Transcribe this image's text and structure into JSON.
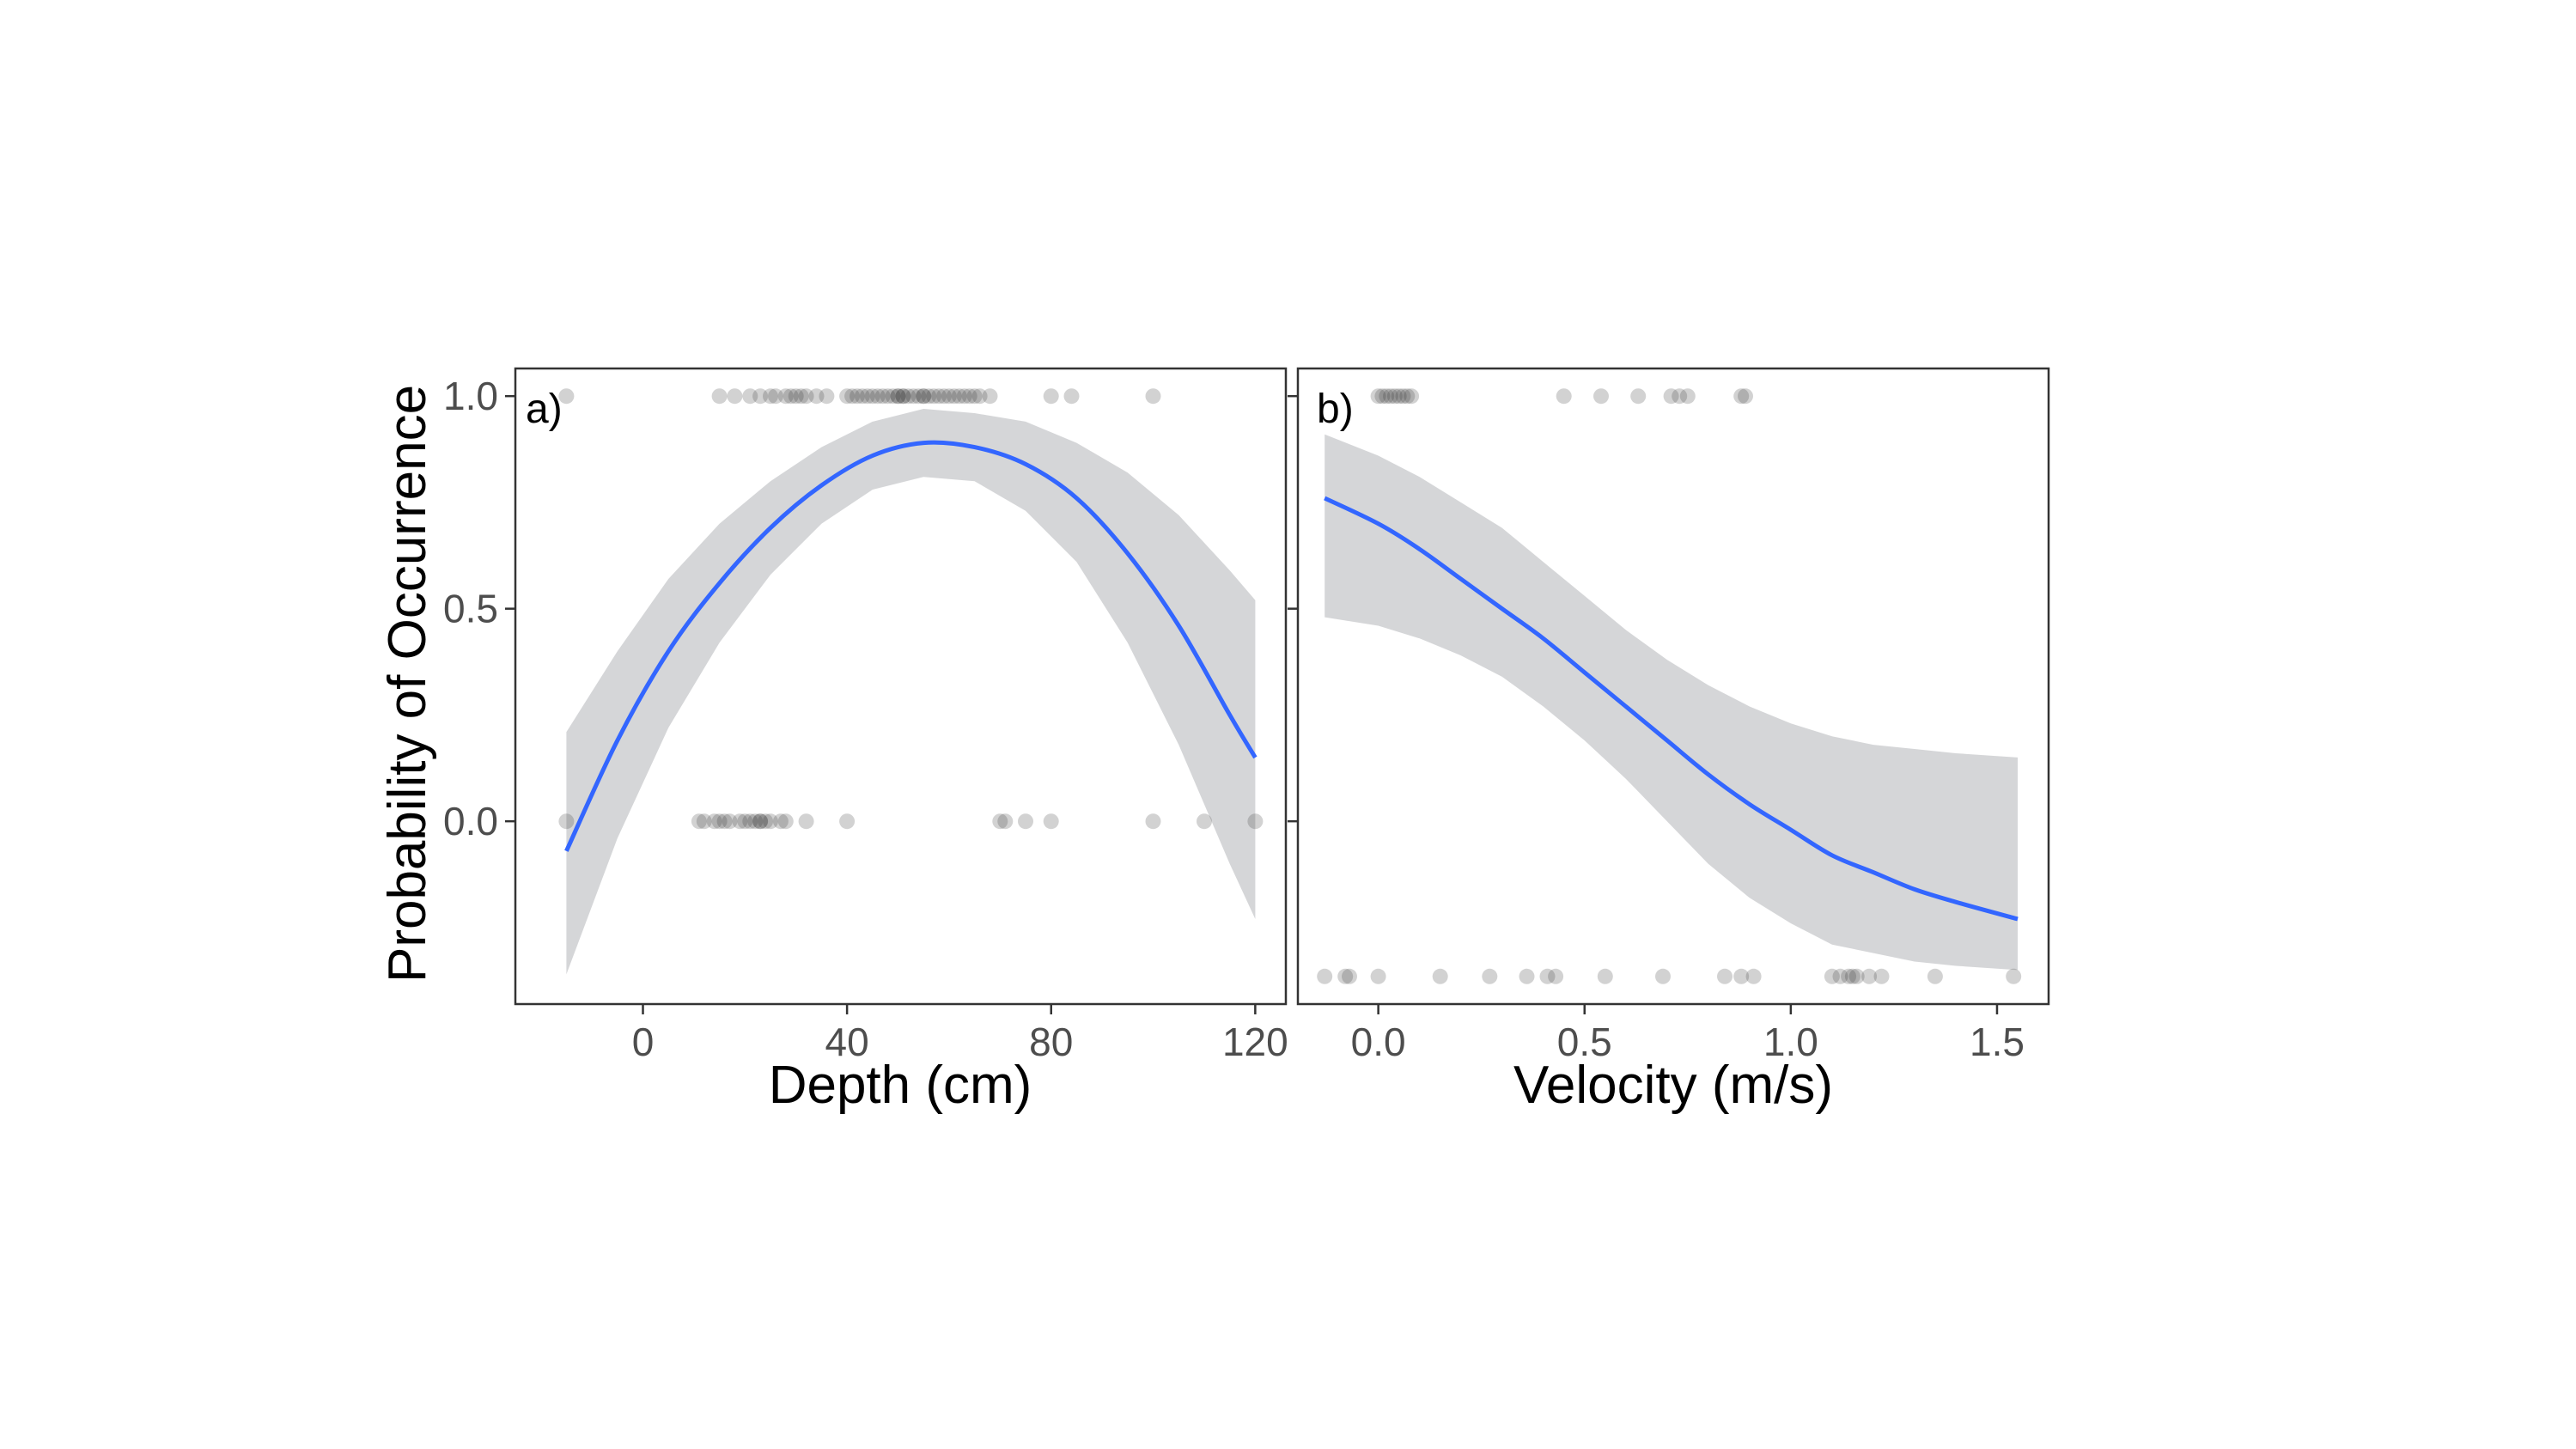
{
  "colors": {
    "curve": "#3366ff",
    "ribbon": "#d3d4d6",
    "points": "#333333",
    "frame": "#333333",
    "tick_text": "#4d4d4d"
  },
  "shared": {
    "ylabel": "Probability of Occurrence",
    "yticks": [
      0.0,
      0.5,
      1.0
    ],
    "ytick_labels": [
      "0.0",
      "0.5",
      "1.0"
    ]
  },
  "chart_data": [
    {
      "type": "line",
      "panel_label": "a)",
      "xlabel": "Depth (cm)",
      "ylabel": "Probability of Occurrence",
      "xlim": [
        -25,
        126
      ],
      "ylim": [
        -0.43,
        1.065
      ],
      "xticks": [
        0,
        40,
        80,
        120
      ],
      "xtick_labels": [
        "0",
        "40",
        "80",
        "120"
      ],
      "yticks": [
        0.0,
        0.5,
        1.0
      ],
      "ytick_labels": [
        "0.0",
        "0.5",
        "1.0"
      ],
      "grid": false,
      "fit": {
        "x": [
          -15,
          -5,
          5,
          15,
          25,
          35,
          45,
          55,
          65,
          75,
          85,
          95,
          105,
          115,
          120
        ],
        "y": [
          -0.07,
          0.19,
          0.4,
          0.56,
          0.69,
          0.79,
          0.86,
          0.89,
          0.88,
          0.84,
          0.76,
          0.63,
          0.46,
          0.25,
          0.15
        ],
        "lower": [
          -0.36,
          -0.04,
          0.22,
          0.42,
          0.58,
          0.7,
          0.78,
          0.81,
          0.8,
          0.73,
          0.61,
          0.42,
          0.18,
          -0.1,
          -0.23
        ],
        "upper": [
          0.21,
          0.4,
          0.57,
          0.7,
          0.8,
          0.88,
          0.94,
          0.97,
          0.96,
          0.94,
          0.89,
          0.82,
          0.72,
          0.59,
          0.52
        ]
      },
      "points": {
        "presence": [
          -15,
          15,
          18,
          21,
          23,
          25,
          26,
          28,
          29,
          30,
          31,
          32,
          34,
          36,
          40,
          41,
          42,
          43,
          44,
          45,
          46,
          47,
          48,
          49,
          50,
          50,
          51,
          51,
          52,
          53,
          54,
          55,
          55,
          56,
          57,
          58,
          59,
          60,
          61,
          62,
          63,
          64,
          65,
          66,
          68,
          80,
          84,
          100
        ],
        "absence": [
          -15,
          11,
          12,
          14,
          15,
          16,
          17,
          19,
          20,
          21,
          22,
          23,
          23,
          24,
          25,
          27,
          28,
          32,
          40,
          70,
          71,
          75,
          80,
          100,
          110,
          120
        ]
      }
    },
    {
      "type": "line",
      "panel_label": "b)",
      "xlabel": "Velocity (m/s)",
      "ylabel": "",
      "xlim": [
        -0.195,
        1.625
      ],
      "ylim": [
        -0.43,
        1.065
      ],
      "xticks": [
        0.0,
        0.5,
        1.0,
        1.5
      ],
      "xtick_labels": [
        "0.0",
        "0.5",
        "1.0",
        "1.5"
      ],
      "yticks": [
        0.0,
        0.5,
        1.0
      ],
      "ytick_labels": [
        "0.0",
        "0.5",
        "1.0"
      ],
      "grid": false,
      "fit": {
        "x": [
          -0.13,
          0.0,
          0.1,
          0.2,
          0.3,
          0.4,
          0.5,
          0.6,
          0.7,
          0.8,
          0.9,
          1.0,
          1.1,
          1.2,
          1.3,
          1.4,
          1.55
        ],
        "y": [
          0.76,
          0.7,
          0.64,
          0.57,
          0.5,
          0.43,
          0.35,
          0.27,
          0.19,
          0.11,
          0.04,
          -0.02,
          -0.08,
          -0.12,
          -0.16,
          -0.19,
          -0.23
        ],
        "lower": [
          0.48,
          0.46,
          0.43,
          0.39,
          0.34,
          0.27,
          0.19,
          0.1,
          0.0,
          -0.1,
          -0.18,
          -0.24,
          -0.29,
          -0.31,
          -0.33,
          -0.34,
          -0.35
        ],
        "upper": [
          0.91,
          0.86,
          0.81,
          0.75,
          0.69,
          0.61,
          0.53,
          0.45,
          0.38,
          0.32,
          0.27,
          0.23,
          0.2,
          0.18,
          0.17,
          0.16,
          0.15
        ]
      },
      "points": {
        "presence": [
          0.0,
          0.01,
          0.02,
          0.03,
          0.04,
          0.05,
          0.06,
          0.07,
          0.08,
          0.45,
          0.54,
          0.63,
          0.71,
          0.73,
          0.75,
          0.88,
          0.89
        ],
        "absence_y": -0.365,
        "absence": [
          -0.13,
          -0.08,
          -0.07,
          0.0,
          0.15,
          0.27,
          0.36,
          0.41,
          0.43,
          0.55,
          0.69,
          0.84,
          0.88,
          0.91,
          1.1,
          1.12,
          1.14,
          1.15,
          1.16,
          1.19,
          1.22,
          1.35,
          1.54
        ]
      }
    }
  ]
}
